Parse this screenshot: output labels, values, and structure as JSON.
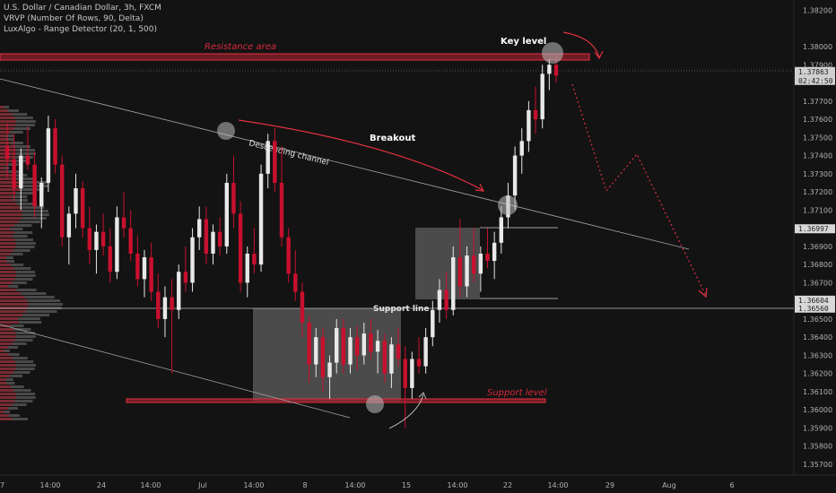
{
  "header": {
    "symbol_line": "U.S. Dollar / Canadian Dollar, 3h, FXCM",
    "indicator_1": "VRVP (Number Of Rows, 90, Delta)",
    "indicator_2": "LuxAlgo - Range Detector (20, 1, 500)"
  },
  "chart_data": {
    "type": "candlestick",
    "y_ticks": [
      "1.38200",
      "1.38000",
      "1.37900",
      "1.37700",
      "1.37600",
      "1.37500",
      "1.37400",
      "1.37300",
      "1.37200",
      "1.37100",
      "1.36900",
      "1.36800",
      "1.36700",
      "1.36500",
      "1.36400",
      "1.36300",
      "1.36200",
      "1.36100",
      "1.36000",
      "1.35900",
      "1.35800",
      "1.35700"
    ],
    "ylim": [
      1.3565,
      1.3826
    ],
    "x_ticks": [
      "7",
      "14:00",
      "24",
      "14:00",
      "Jul",
      "14:00",
      "8",
      "14:00",
      "15",
      "14:00",
      "22",
      "14:00",
      "29",
      "Aug",
      "6"
    ],
    "price_labels": [
      {
        "text": "1.37863",
        "sub": "02:42:50",
        "value": 1.37863,
        "color": "#d0d0d0"
      },
      {
        "text": "1.36997",
        "value": 1.36997,
        "color": "#d8d8d8"
      },
      {
        "text": "1.36604",
        "value": 1.36604,
        "color": "#d8d8d8"
      },
      {
        "text": "1.36560",
        "value": 1.3656,
        "color": "#d8d8d8"
      }
    ],
    "annotations": {
      "resistance_area": "Resistance area",
      "key_level": "Key level",
      "breakout": "Breakout",
      "descending_channel": "Descending channel",
      "support_line": "Support line",
      "support_level": "Support level"
    },
    "candles": [
      [
        1.3745,
        1.3758,
        1.3728,
        1.3738
      ],
      [
        1.3738,
        1.3752,
        1.3715,
        1.3722
      ],
      [
        1.3722,
        1.3744,
        1.371,
        1.374
      ],
      [
        1.374,
        1.3756,
        1.3732,
        1.3735
      ],
      [
        1.3735,
        1.3742,
        1.3706,
        1.3712
      ],
      [
        1.3712,
        1.3728,
        1.37,
        1.3725
      ],
      [
        1.3725,
        1.3762,
        1.372,
        1.3755
      ],
      [
        1.3755,
        1.376,
        1.373,
        1.3735
      ],
      [
        1.3735,
        1.374,
        1.369,
        1.3695
      ],
      [
        1.3695,
        1.3712,
        1.368,
        1.3708
      ],
      [
        1.3708,
        1.373,
        1.37,
        1.3722
      ],
      [
        1.3722,
        1.3726,
        1.3695,
        1.37
      ],
      [
        1.37,
        1.3712,
        1.368,
        1.3688
      ],
      [
        1.3688,
        1.3702,
        1.3675,
        1.3698
      ],
      [
        1.3698,
        1.3708,
        1.3685,
        1.369
      ],
      [
        1.369,
        1.37,
        1.367,
        1.3676
      ],
      [
        1.3676,
        1.3712,
        1.3672,
        1.3706
      ],
      [
        1.3706,
        1.372,
        1.3695,
        1.37
      ],
      [
        1.37,
        1.371,
        1.3682,
        1.3686
      ],
      [
        1.3686,
        1.3696,
        1.3668,
        1.3672
      ],
      [
        1.3672,
        1.3688,
        1.3662,
        1.3684
      ],
      [
        1.3684,
        1.3692,
        1.366,
        1.3665
      ],
      [
        1.3665,
        1.3675,
        1.3645,
        1.365
      ],
      [
        1.365,
        1.3668,
        1.364,
        1.3662
      ],
      [
        1.3662,
        1.3672,
        1.362,
        1.3655
      ],
      [
        1.3655,
        1.368,
        1.365,
        1.3676
      ],
      [
        1.3676,
        1.369,
        1.3665,
        1.367
      ],
      [
        1.367,
        1.37,
        1.3665,
        1.3695
      ],
      [
        1.3695,
        1.3712,
        1.3688,
        1.3705
      ],
      [
        1.3705,
        1.3712,
        1.368,
        1.3686
      ],
      [
        1.3686,
        1.3702,
        1.368,
        1.3698
      ],
      [
        1.3698,
        1.3706,
        1.3685,
        1.369
      ],
      [
        1.369,
        1.373,
        1.3686,
        1.3725
      ],
      [
        1.3725,
        1.374,
        1.37,
        1.3708
      ],
      [
        1.3708,
        1.3715,
        1.3665,
        1.367
      ],
      [
        1.367,
        1.369,
        1.3662,
        1.3686
      ],
      [
        1.3686,
        1.37,
        1.3675,
        1.368
      ],
      [
        1.368,
        1.3735,
        1.3676,
        1.373
      ],
      [
        1.373,
        1.3752,
        1.3722,
        1.3748
      ],
      [
        1.3748,
        1.3755,
        1.372,
        1.3725
      ],
      [
        1.3725,
        1.3745,
        1.369,
        1.3695
      ],
      [
        1.3695,
        1.37,
        1.367,
        1.3675
      ],
      [
        1.3675,
        1.3688,
        1.366,
        1.3665
      ],
      [
        1.3665,
        1.367,
        1.364,
        1.3648
      ],
      [
        1.3648,
        1.3652,
        1.3615,
        1.3625
      ],
      [
        1.3625,
        1.3645,
        1.3618,
        1.364
      ],
      [
        1.364,
        1.3645,
        1.361,
        1.3618
      ],
      [
        1.3618,
        1.363,
        1.3606,
        1.3626
      ],
      [
        1.3626,
        1.365,
        1.362,
        1.3645
      ],
      [
        1.3645,
        1.365,
        1.362,
        1.3625
      ],
      [
        1.3625,
        1.3645,
        1.362,
        1.364
      ],
      [
        1.364,
        1.3646,
        1.3622,
        1.363
      ],
      [
        1.363,
        1.3648,
        1.3625,
        1.3642
      ],
      [
        1.3642,
        1.365,
        1.3628,
        1.3632
      ],
      [
        1.3632,
        1.3644,
        1.362,
        1.3638
      ],
      [
        1.3638,
        1.3642,
        1.3615,
        1.362
      ],
      [
        1.362,
        1.364,
        1.3612,
        1.3636
      ],
      [
        1.3636,
        1.3645,
        1.3624,
        1.3628
      ],
      [
        1.3628,
        1.3635,
        1.359,
        1.3612
      ],
      [
        1.3612,
        1.3632,
        1.3606,
        1.3628
      ],
      [
        1.3628,
        1.364,
        1.362,
        1.3624
      ],
      [
        1.3624,
        1.3645,
        1.362,
        1.364
      ],
      [
        1.364,
        1.366,
        1.3635,
        1.3655
      ],
      [
        1.3655,
        1.3672,
        1.3648,
        1.3666
      ],
      [
        1.3666,
        1.3676,
        1.365,
        1.3655
      ],
      [
        1.3655,
        1.369,
        1.3652,
        1.3684
      ],
      [
        1.3684,
        1.3705,
        1.3662,
        1.3668
      ],
      [
        1.3668,
        1.369,
        1.3662,
        1.3685
      ],
      [
        1.3685,
        1.37,
        1.367,
        1.3675
      ],
      [
        1.3675,
        1.369,
        1.3665,
        1.3686
      ],
      [
        1.3686,
        1.37,
        1.3678,
        1.3682
      ],
      [
        1.3682,
        1.3698,
        1.3672,
        1.3692
      ],
      [
        1.3692,
        1.3712,
        1.3686,
        1.3706
      ],
      [
        1.3706,
        1.3725,
        1.37,
        1.3718
      ],
      [
        1.3718,
        1.3745,
        1.371,
        1.374
      ],
      [
        1.374,
        1.3755,
        1.373,
        1.3748
      ],
      [
        1.3748,
        1.377,
        1.3742,
        1.3765
      ],
      [
        1.3765,
        1.3778,
        1.3752,
        1.376
      ],
      [
        1.376,
        1.379,
        1.3755,
        1.3785
      ],
      [
        1.3785,
        1.3793,
        1.3776,
        1.379
      ],
      [
        1.379,
        1.3795,
        1.378,
        1.3784
      ]
    ]
  }
}
